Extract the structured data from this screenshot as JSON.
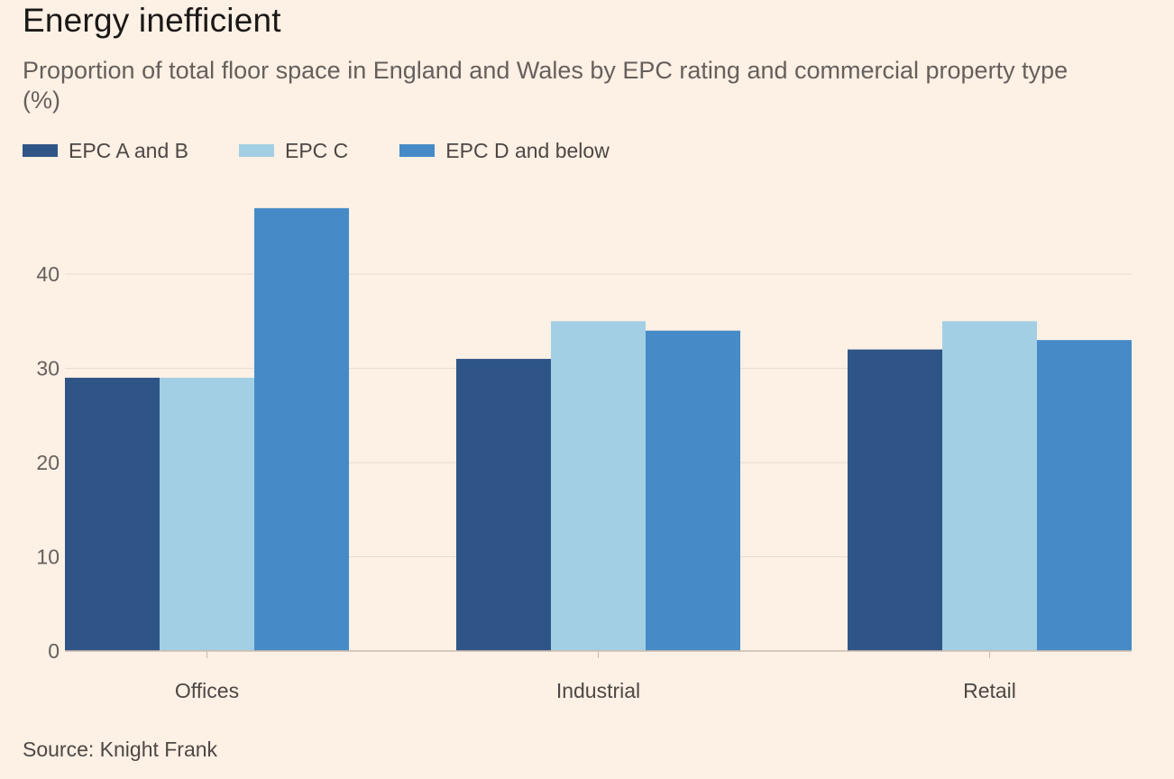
{
  "title": "Energy inefficient",
  "subtitle": "Proportion of total floor space in England and Wales by EPC rating and commercial property type (%)",
  "source": "Source: Knight Frank",
  "colors": {
    "background": "#fdf0e5",
    "gridline": "#e8dccf",
    "baseline": "#c9bcae"
  },
  "chart_data": {
    "type": "bar",
    "title": "Energy inefficient",
    "subtitle": "Proportion of total floor space in England and Wales by EPC rating and commercial property type (%)",
    "xlabel": "",
    "ylabel": "",
    "categories": [
      "Offices",
      "Industrial",
      "Retail"
    ],
    "series": [
      {
        "name": "EPC A and B",
        "color": "#2f5587",
        "values": [
          29,
          31,
          32
        ]
      },
      {
        "name": "EPC C",
        "color": "#a3cfe4",
        "values": [
          29,
          35,
          35
        ]
      },
      {
        "name": "EPC D and below",
        "color": "#468bc7",
        "values": [
          47,
          34,
          33
        ]
      }
    ],
    "ylim": [
      0,
      47
    ],
    "yticks": [
      "0",
      "10",
      "20",
      "30",
      "40"
    ],
    "grid": true,
    "legend": "top-left"
  }
}
